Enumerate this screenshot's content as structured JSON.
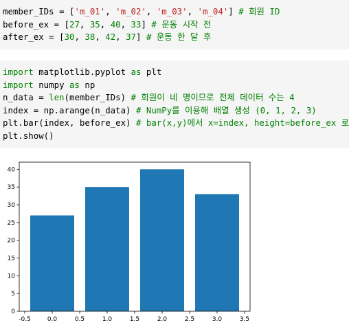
{
  "cell1": {
    "line1": {
      "var": "member_IDs",
      "eq": " = ",
      "open": "[",
      "s1": "'m_01'",
      "s2": "'m_02'",
      "s3": "'m_03'",
      "s4": "'m_04'",
      "close": "]",
      "comment": "# 회원 ID"
    },
    "line2": {
      "var": "before_ex",
      "eq": " = ",
      "open": "[",
      "n1": "27",
      "n2": "35",
      "n3": "40",
      "n4": "33",
      "close": "]",
      "comment": "# 운동 시작 전"
    },
    "line3": {
      "var": "after_ex",
      "eq": " = ",
      "open": "[",
      "n1": "30",
      "n2": "38",
      "n3": "42",
      "n4": "37",
      "close": "]",
      "comment": "# 운동 한 달 후"
    }
  },
  "cell2": {
    "line1": {
      "kw1": "import",
      "mod": " matplotlib.pyplot ",
      "kw2": "as",
      "alias": " plt"
    },
    "line2": {
      "kw1": "import",
      "mod": " numpy ",
      "kw2": "as",
      "alias": " np"
    },
    "line3": {
      "pre": "n_data = ",
      "fn": "len",
      "args": "(member_IDs) ",
      "comment": "# 회원이 네 명이므로 전체 데이터 수는 4"
    },
    "line4": {
      "pre": "index = np.arange(n_data) ",
      "comment": "# NumPy를 이용해 배열 생성 (0, 1, 2, 3)"
    },
    "line5": {
      "pre": "plt.bar(index, before_ex) ",
      "comment": "# bar(x,y)에서 x=index, height=before_ex 로"
    },
    "line6": {
      "pre": "plt.show()"
    }
  },
  "chart_data": {
    "type": "bar",
    "x": [
      0,
      1,
      2,
      3
    ],
    "values": [
      27,
      35,
      40,
      33
    ],
    "xlim": [
      -0.6,
      3.6
    ],
    "ylim": [
      0,
      42
    ],
    "xticks": [
      "-0.5",
      "0.0",
      "0.5",
      "1.0",
      "1.5",
      "2.0",
      "2.5",
      "3.0",
      "3.5"
    ],
    "yticks": [
      "0",
      "5",
      "10",
      "15",
      "20",
      "25",
      "30",
      "35",
      "40"
    ],
    "color": "#1f77b4",
    "grid": false
  }
}
